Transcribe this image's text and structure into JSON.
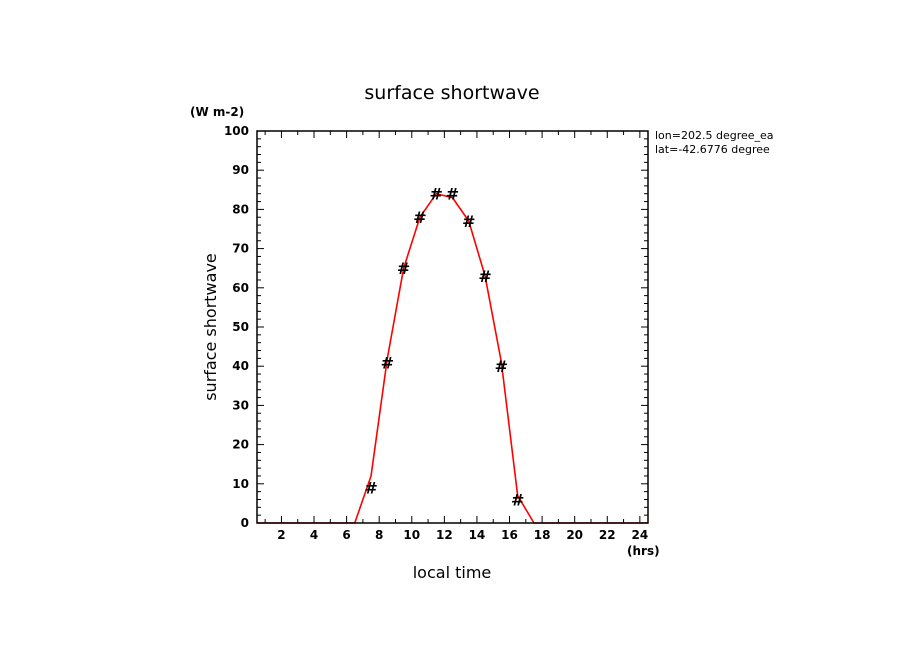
{
  "chart_data": {
    "type": "line",
    "title": "surface shortwave",
    "xlabel": "local time",
    "ylabel": "surface shortwave",
    "x_unit": "(hrs)",
    "y_unit": "(W m-2)",
    "annotations": [
      "lon=202.5 degree_ea",
      "lat=-42.6776 degree"
    ],
    "xlim": [
      0.5,
      24.5
    ],
    "ylim": [
      0,
      100
    ],
    "x_ticks": [
      2,
      4,
      6,
      8,
      10,
      12,
      14,
      16,
      18,
      20,
      22,
      24
    ],
    "y_ticks": [
      0,
      10,
      20,
      30,
      40,
      50,
      60,
      70,
      80,
      90,
      100
    ],
    "grid": false,
    "series": [
      {
        "color": "#ff0000",
        "x": [
          0.5,
          1.5,
          2.5,
          3.5,
          4.5,
          5.5,
          6.5,
          7.5,
          8.5,
          9.5,
          10.5,
          11.5,
          12.5,
          13.5,
          14.5,
          15.5,
          16.5,
          17.5,
          18.5,
          19.5,
          20.5,
          21.5,
          22.5,
          23.5,
          24.5
        ],
        "values": [
          0,
          0,
          0,
          0,
          0,
          0,
          0,
          12,
          42,
          65,
          78,
          84,
          83,
          77,
          63,
          41,
          7,
          0,
          0,
          0,
          0,
          0,
          0,
          0,
          0
        ]
      }
    ],
    "markers": {
      "symbol": "#",
      "color": "#000000",
      "x": [
        7.5,
        8.5,
        9.5,
        10.5,
        11.5,
        12.5,
        13.5,
        14.5,
        15.5,
        16.5
      ],
      "values": [
        9,
        41,
        65,
        78,
        84,
        84,
        77,
        63,
        40,
        6
      ]
    }
  }
}
